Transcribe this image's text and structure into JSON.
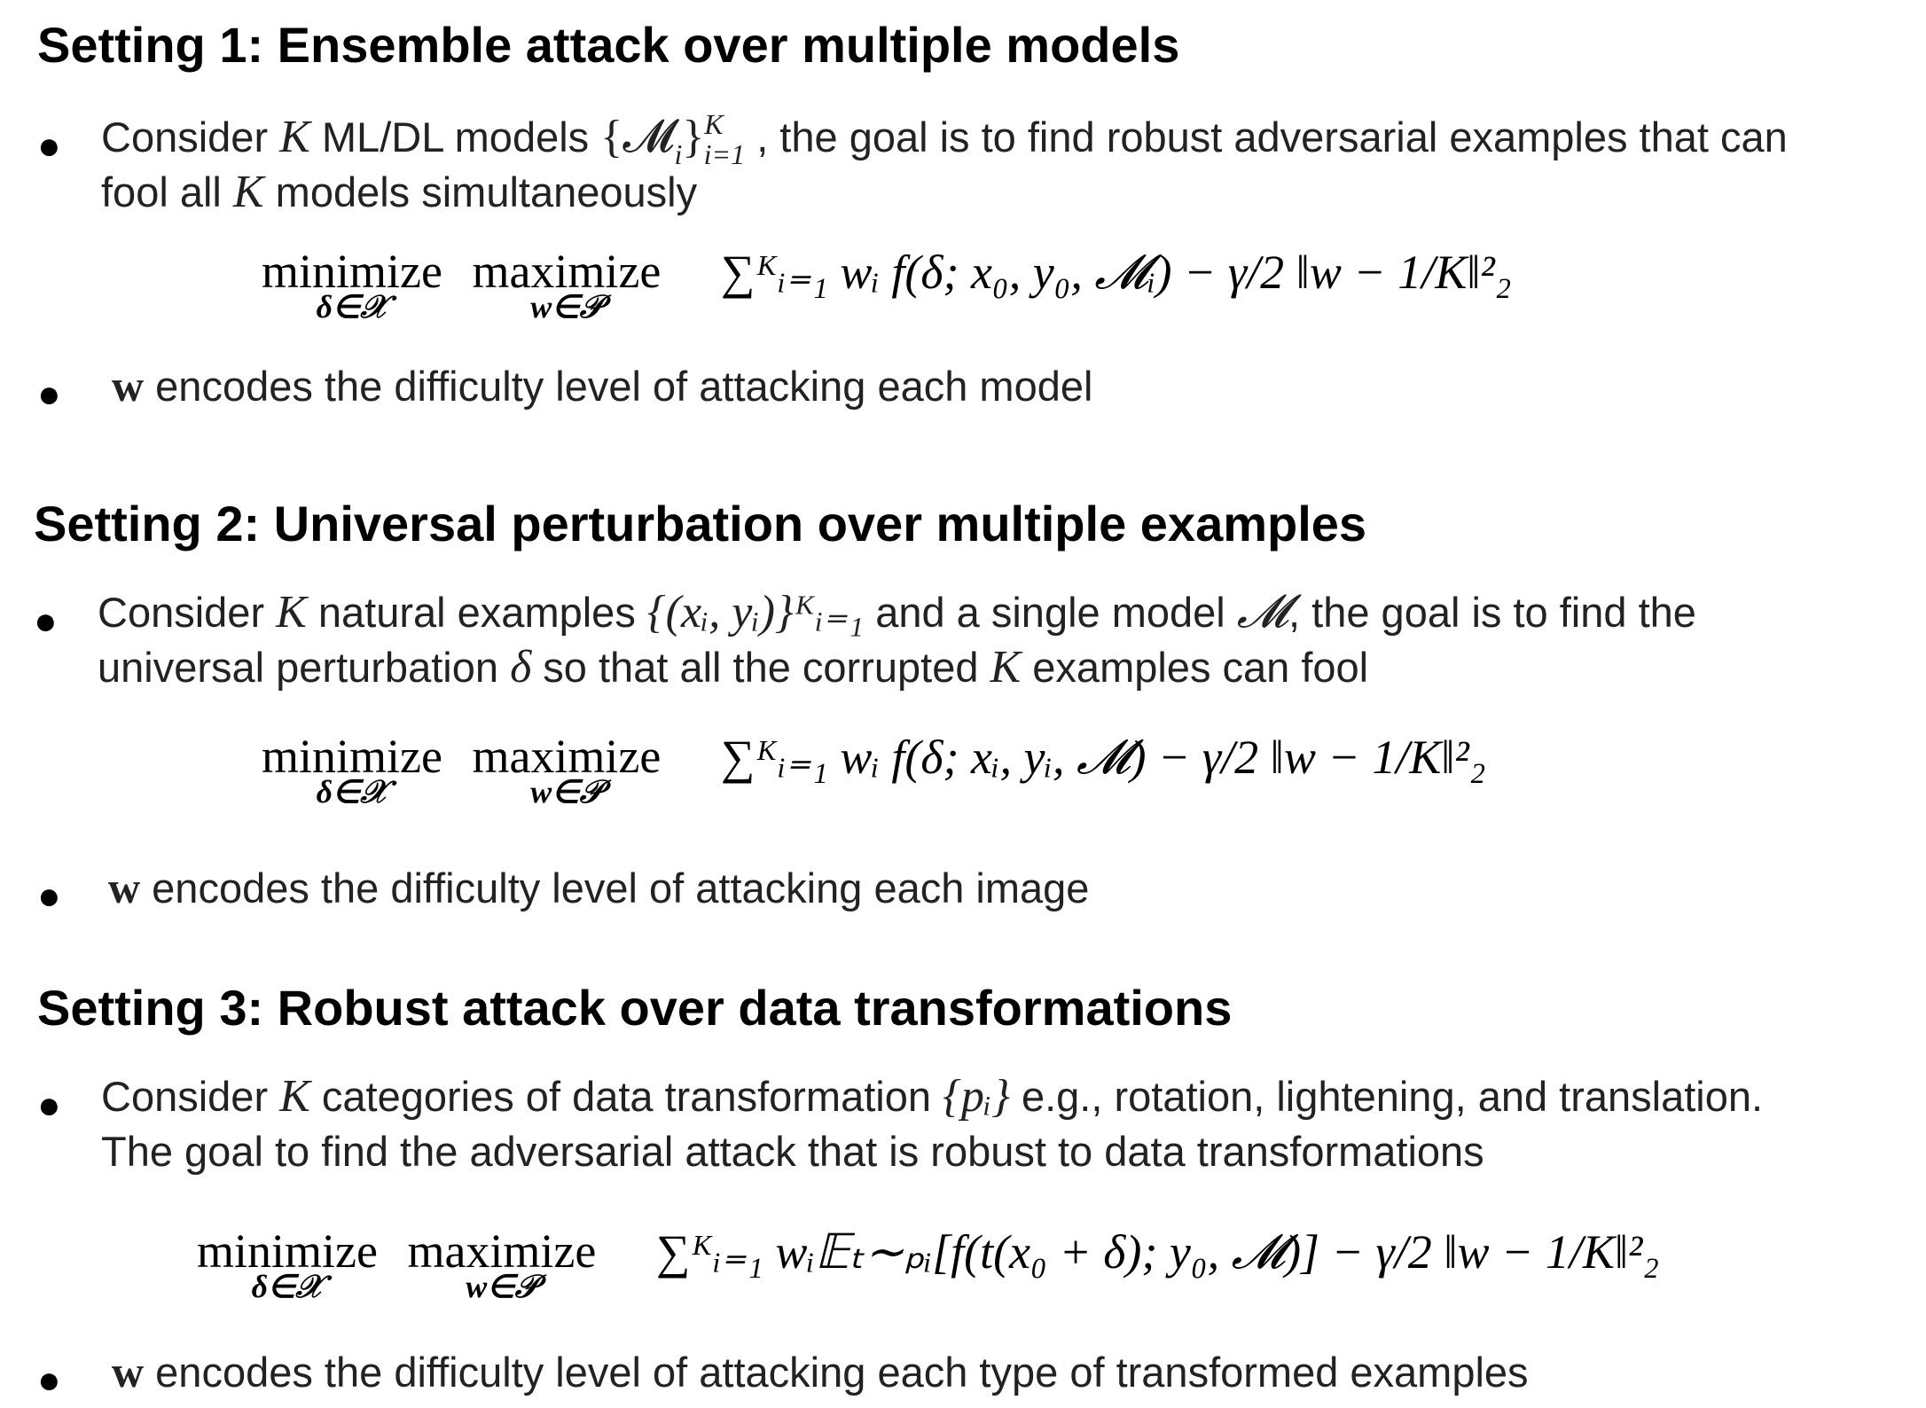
{
  "settings": [
    {
      "heading": "Setting 1: Ensemble attack over multiple models",
      "bullet1_lines": [
        "Consider",
        "ML/DL models",
        ", the goal is to find robust adversarial examples that can",
        "fool all",
        "models simultaneously"
      ],
      "math": {
        "K": "K",
        "set": "{𝓜",
        "set_sub": "i",
        "set_close": "}",
        "set_sup": "K",
        "set_sub2": "i=1",
        "min": "minimize",
        "min_under": "δ∈𝒳",
        "max": "maximize",
        "max_under": "w∈𝒫",
        "body": "∑ᴷᵢ₌₁ wᵢ f(δ; x₀, y₀, 𝓜ᵢ) − γ/2 ‖w − 1/K‖²₂"
      },
      "bullet2_bold": "w",
      "bullet2_text": "encodes the difficulty level of attacking each model"
    },
    {
      "heading": "Setting 2: Universal perturbation over multiple examples",
      "bullet1_lines": [
        "Consider",
        "natural examples",
        "and a single model",
        ", the goal is to find the",
        "universal perturbation",
        "so that all the corrupted",
        "examples can fool"
      ],
      "math": {
        "set": "{(xᵢ, yᵢ)}ᴷᵢ₌₁",
        "model": "𝓜",
        "delta": "δ",
        "min": "minimize",
        "min_under": "δ∈𝒳",
        "max": "maximize",
        "max_under": "w∈𝒫",
        "body": "∑ᴷᵢ₌₁ wᵢ f(δ; xᵢ, yᵢ, 𝓜) − γ/2 ‖w − 1/K‖²₂"
      },
      "bullet2_bold": "w",
      "bullet2_text": "encodes the difficulty level of attacking each image"
    },
    {
      "heading": "Setting 3: Robust attack over data transformations",
      "bullet1_lines": [
        "Consider",
        "categories of data transformation",
        "e.g., rotation, lightening, and translation.",
        "The goal to find the adversarial attack that is robust to data transformations"
      ],
      "math": {
        "set": "{pᵢ}",
        "min": "minimize",
        "min_under": "δ∈𝒳",
        "max": "maximize",
        "max_under": "w∈𝒫",
        "body": "∑ᴷᵢ₌₁ wᵢ𝔼ₜ∼ₚᵢ[f(t(x₀ + δ); y₀, 𝓜)] − γ/2 ‖w − 1/K‖²₂"
      },
      "bullet2_bold": "w",
      "bullet2_text": "encodes the difficulty level of attacking each type of transformed examples"
    }
  ]
}
